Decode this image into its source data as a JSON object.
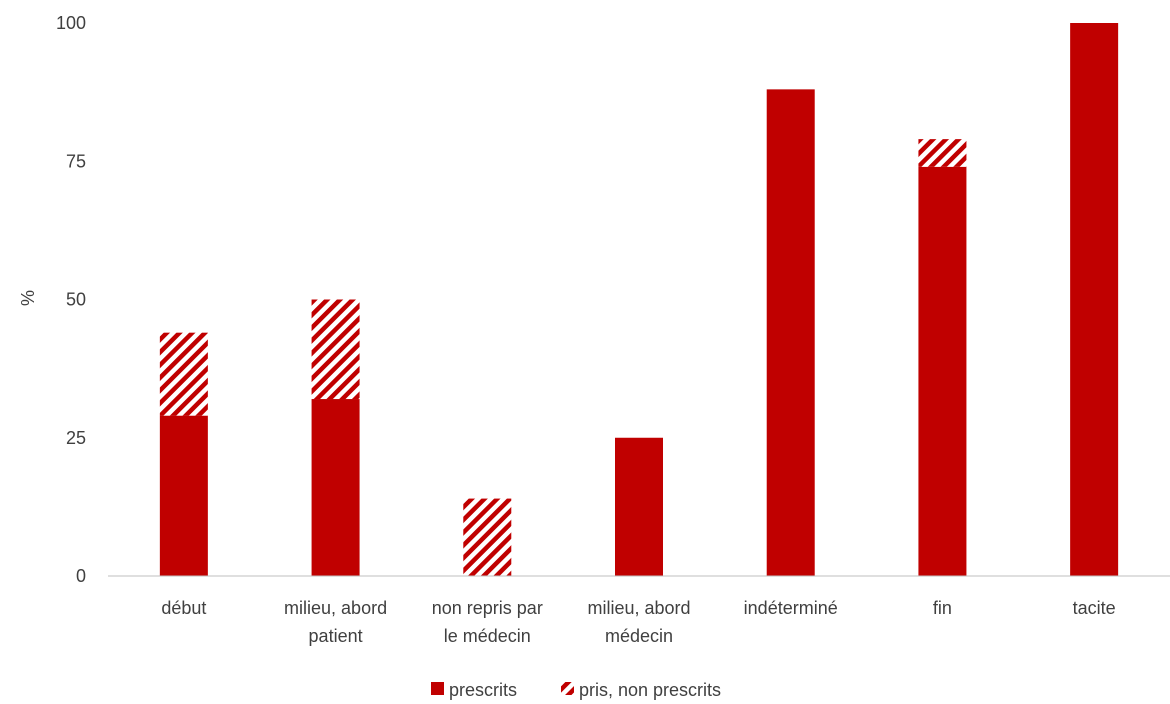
{
  "colors": {
    "prescrits": "#c00000",
    "hatch_bg": "#ffffff",
    "axis": "#bfbfbf",
    "text": "#404040"
  },
  "chart_data": {
    "type": "bar",
    "stacked": true,
    "ylabel": "%",
    "xlabel": "",
    "ylim": [
      0,
      100
    ],
    "yticks": [
      0,
      25,
      50,
      75,
      100
    ],
    "categories": [
      [
        "début"
      ],
      [
        "milieu, abord",
        "patient"
      ],
      [
        "non repris par",
        "le médecin"
      ],
      [
        "milieu, abord",
        "médecin"
      ],
      [
        "indéterminé"
      ],
      [
        "fin"
      ],
      [
        "tacite"
      ]
    ],
    "series": [
      {
        "name": "prescrits",
        "pattern": "solid",
        "values": [
          29,
          32,
          0,
          25,
          88,
          74,
          100
        ]
      },
      {
        "name": "pris, non prescrits",
        "pattern": "hatched",
        "values": [
          15,
          18,
          14,
          0,
          0,
          5,
          0
        ]
      }
    ],
    "legend": {
      "position": "bottom"
    },
    "grid": false
  }
}
